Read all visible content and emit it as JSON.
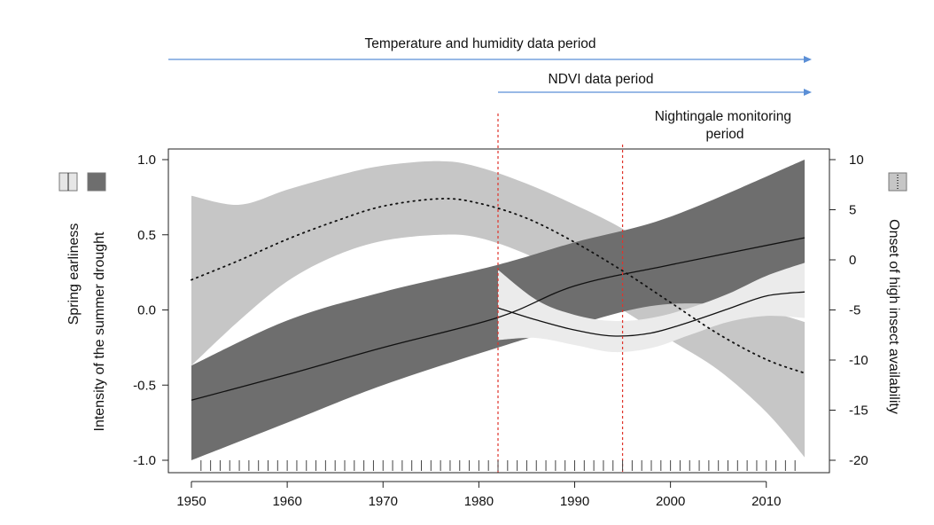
{
  "chart_data": {
    "type": "line",
    "title": "",
    "x_range": [
      1950,
      2014
    ],
    "x_ticks": [
      1950,
      1960,
      1970,
      1980,
      1990,
      2000,
      2010
    ],
    "left_axis": {
      "labels": [
        "Spring earliness",
        "Intensity of the summer drought"
      ],
      "range": [
        -1.0,
        1.0
      ],
      "ticks": [
        "-1.0",
        "-0.5",
        "0.0",
        "0.5",
        "1.0"
      ]
    },
    "right_axis": {
      "label": "Onset of high insect availability",
      "range": [
        -20,
        10
      ],
      "ticks": [
        "-20",
        "-15",
        "-10",
        "-5",
        "0",
        "5",
        "10"
      ]
    },
    "periods": [
      {
        "label": "Temperature and humidity  data period",
        "start": 1950,
        "end": 2014
      },
      {
        "label": "NDVI data period",
        "start": 1982,
        "end": 2014
      },
      {
        "label": "Nightingale monitoring\nperiod",
        "start": 1995,
        "end": 2014
      }
    ],
    "vlines": [
      1982,
      1995
    ],
    "series": [
      {
        "key": "spring",
        "axis": "left",
        "style": "dotted",
        "band_color": "#c6c6c6",
        "x": [
          1950,
          1955,
          1960,
          1965,
          1970,
          1976,
          1980,
          1985,
          1990,
          1995,
          2000,
          2005,
          2010,
          2014
        ],
        "y": [
          0.2,
          0.33,
          0.47,
          0.59,
          0.69,
          0.74,
          0.71,
          0.61,
          0.45,
          0.26,
          0.05,
          -0.16,
          -0.33,
          -0.42
        ],
        "lower": [
          -0.37,
          -0.07,
          0.19,
          0.36,
          0.46,
          0.5,
          0.48,
          0.37,
          0.2,
          0.0,
          -0.2,
          -0.4,
          -0.68,
          -0.98
        ],
        "upper": [
          0.76,
          0.7,
          0.8,
          0.89,
          0.96,
          0.99,
          0.95,
          0.84,
          0.7,
          0.54,
          0.33,
          0.12,
          0.0,
          -0.08
        ]
      },
      {
        "key": "drought",
        "axis": "left",
        "style": "solid",
        "band_color": "#6e6e6e",
        "x": [
          1950,
          1960,
          1970,
          1982,
          1990,
          2000,
          2014
        ],
        "y": [
          -0.6,
          -0.43,
          -0.25,
          -0.05,
          0.16,
          0.3,
          0.48
        ],
        "lower": [
          -1.0,
          -0.75,
          -0.5,
          -0.25,
          -0.1,
          0.04,
          0.0
        ],
        "upper": [
          -0.37,
          -0.07,
          0.12,
          0.3,
          0.45,
          0.62,
          1.0
        ]
      },
      {
        "key": "insect",
        "axis": "right",
        "style": "solid",
        "band_color": "#ebebeb",
        "x": [
          1982,
          1986,
          1990,
          1994,
          1998,
          2002,
          2006,
          2010,
          2014
        ],
        "y": [
          -4.8,
          -6.0,
          -7.0,
          -7.6,
          -7.3,
          -6.2,
          -4.9,
          -3.6,
          -3.2
        ],
        "lower": [
          -8.0,
          -7.8,
          -8.5,
          -9.2,
          -8.8,
          -7.5,
          -6.2,
          -5.6,
          -5.8
        ],
        "upper": [
          -1.0,
          -4.0,
          -5.5,
          -6.1,
          -5.8,
          -4.8,
          -3.4,
          -1.6,
          -0.3
        ]
      }
    ],
    "rug_x": [
      1951,
      1952,
      1953,
      1954,
      1955,
      1956,
      1957,
      1958,
      1959,
      1960,
      1961,
      1962,
      1963,
      1964,
      1965,
      1966,
      1967,
      1968,
      1969,
      1970,
      1971,
      1972,
      1973,
      1974,
      1975,
      1976,
      1977,
      1978,
      1979,
      1980,
      1981,
      1982,
      1983,
      1984,
      1985,
      1986,
      1987,
      1988,
      1989,
      1990,
      1991,
      1992,
      1993,
      1994,
      1995,
      1996,
      1997,
      1998,
      1999,
      2000,
      2001,
      2002,
      2003,
      2004,
      2005,
      2006,
      2007,
      2008,
      2009,
      2010,
      2011,
      2012,
      2013
    ],
    "legend_boxes": [
      {
        "side": "left",
        "fill": "#e6e6e6",
        "style": "solid-line"
      },
      {
        "side": "left",
        "fill": "#6e6e6e",
        "style": "plain"
      },
      {
        "side": "right",
        "fill": "#c6c6c6",
        "style": "dotted-line"
      }
    ],
    "colors": {
      "vline": "#e0332b",
      "arrow": "#5b8fd6"
    }
  }
}
